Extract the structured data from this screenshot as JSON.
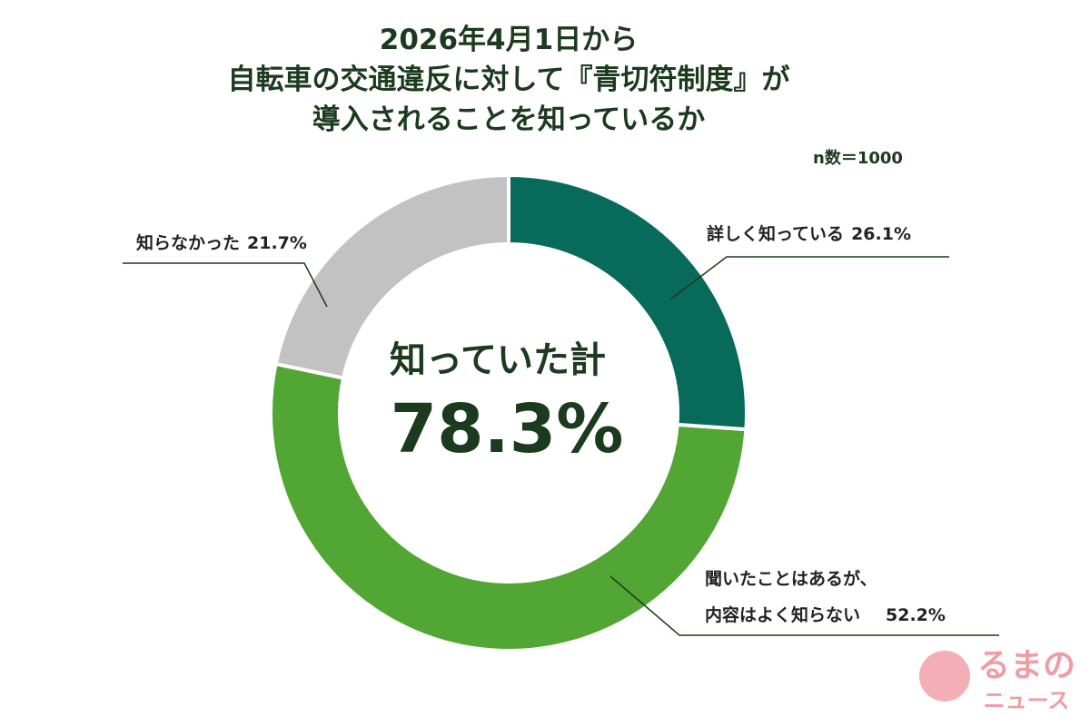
{
  "chart_data": {
    "type": "donut",
    "title": [
      "2026年4月1日から",
      "自転車の交通違反に対して『青切符制度』が",
      "導入されることを知っているか"
    ],
    "note": "n数＝1000",
    "categories": [
      "詳しく知っている",
      "聞いたことはあるが、\n内容はよく知らない",
      "知らなかった"
    ],
    "values": [
      26.1,
      52.2,
      21.7
    ],
    "value_labels": [
      "26.1%",
      "52.2%",
      "21.7%"
    ],
    "colors": [
      "#076a5b",
      "#52a633",
      "#c2c2c2"
    ],
    "center_label": "知っていた計",
    "center_total": {
      "value": 78.3,
      "label": "78.3%"
    }
  },
  "logo": {
    "line1": "るまの",
    "line2": "ニュース"
  }
}
